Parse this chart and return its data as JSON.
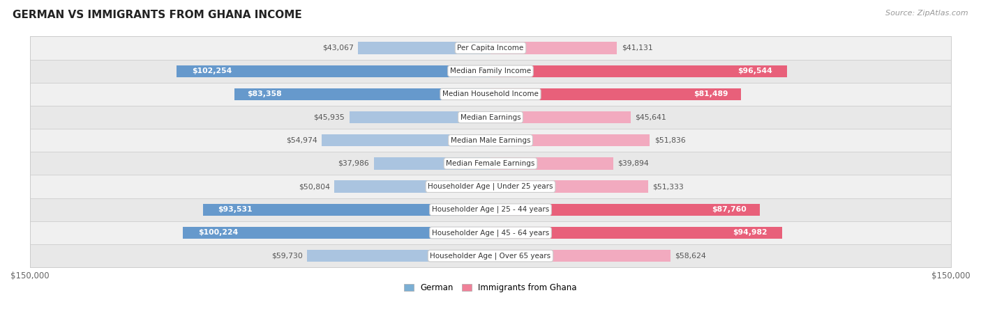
{
  "title": "GERMAN VS IMMIGRANTS FROM GHANA INCOME",
  "source": "Source: ZipAtlas.com",
  "max_val": 150000,
  "categories": [
    "Per Capita Income",
    "Median Family Income",
    "Median Household Income",
    "Median Earnings",
    "Median Male Earnings",
    "Median Female Earnings",
    "Householder Age | Under 25 years",
    "Householder Age | 25 - 44 years",
    "Householder Age | 45 - 64 years",
    "Householder Age | Over 65 years"
  ],
  "german_values": [
    43067,
    102254,
    83358,
    45935,
    54974,
    37986,
    50804,
    93531,
    100224,
    59730
  ],
  "ghana_values": [
    41131,
    96544,
    81489,
    45641,
    51836,
    39894,
    51333,
    87760,
    94982,
    58624
  ],
  "german_labels": [
    "$43,067",
    "$102,254",
    "$83,358",
    "$45,935",
    "$54,974",
    "$37,986",
    "$50,804",
    "$93,531",
    "$100,224",
    "$59,730"
  ],
  "ghana_labels": [
    "$41,131",
    "$96,544",
    "$81,489",
    "$45,641",
    "$51,836",
    "$39,894",
    "$51,333",
    "$87,760",
    "$94,982",
    "$58,624"
  ],
  "german_color_light": "#aac4e0",
  "german_color_dark": "#6699cc",
  "ghana_color_light": "#f2aabf",
  "ghana_color_dark": "#e8607a",
  "label_inside_threshold": 75000,
  "background_color": "#ffffff",
  "row_bg_even": "#f0f0f0",
  "row_bg_odd": "#e8e8e8",
  "bar_height": 0.52,
  "legend_german_color": "#7bafd4",
  "legend_ghana_color": "#f08098"
}
